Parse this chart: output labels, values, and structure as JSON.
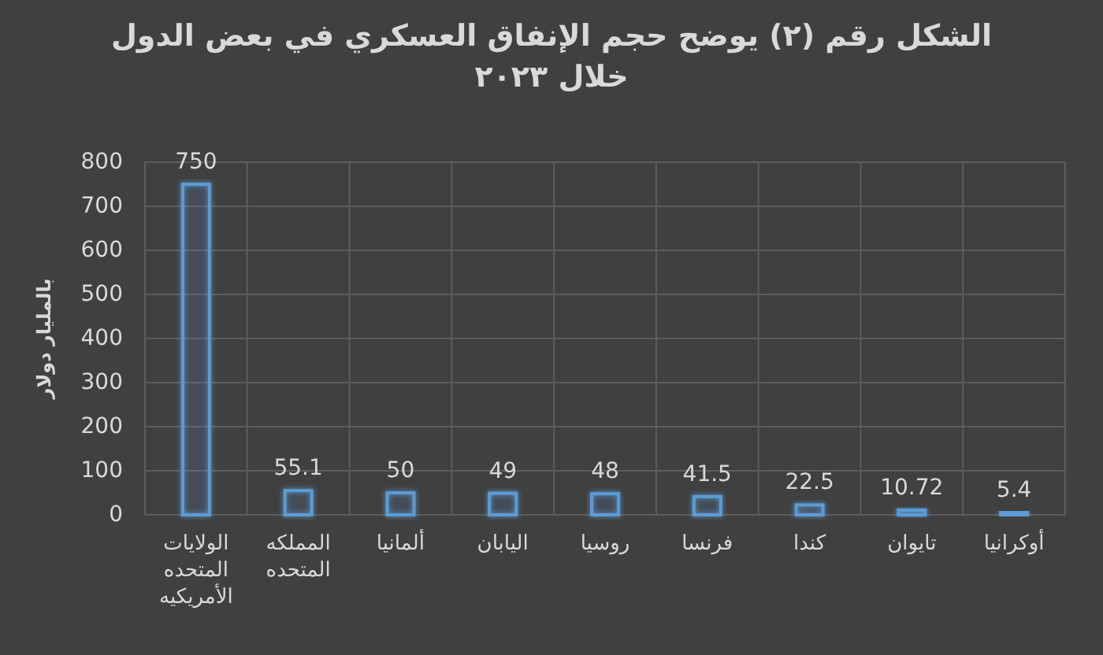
{
  "chart_data": {
    "type": "bar",
    "title": "الشكل رقم (٢) يوضح حجم الإنفاق العسكري في بعض الدول خلال ٢٠٢٣",
    "ylabel": "بالمليار دولار",
    "categories": [
      "الولايات المتحده الأمريكيه",
      "المملكه المتحده",
      "ألمانيا",
      "اليابان",
      "روسيا",
      "فرنسا",
      "كندا",
      "تايوان",
      "أوكرانيا"
    ],
    "values": [
      750,
      55.1,
      50,
      49,
      48,
      41.5,
      22.5,
      10.72,
      5.4
    ],
    "color": "#5b9bd5",
    "ylim": [
      0,
      800
    ],
    "yticks": [
      0,
      100,
      200,
      300,
      400,
      500,
      600,
      700,
      800
    ],
    "grid": true,
    "data_labels": true
  }
}
